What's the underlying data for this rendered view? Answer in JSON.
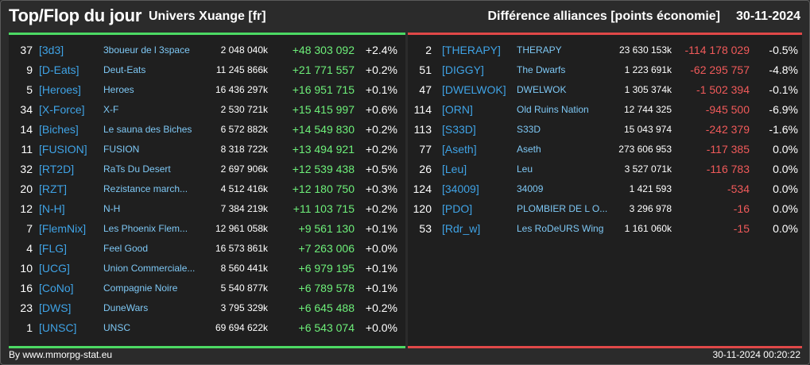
{
  "header": {
    "title": "Top/Flop du jour",
    "subtitle": "Univers Xuange [fr]",
    "right_title": "Différence alliances [points économie]",
    "date": "30-11-2024"
  },
  "colors": {
    "top_accent": "#4cd964",
    "flop_accent": "#e04848",
    "tag_color": "#3fa3e6",
    "name_color": "#7ec8f5"
  },
  "top": [
    {
      "rank": "37",
      "tag": "[3d3]",
      "name": "3boueur de l 3space",
      "points": "2 048 040k",
      "diff": "+48 303 092",
      "pct": "+2.4%"
    },
    {
      "rank": "9",
      "tag": "[D-Eats]",
      "name": "Deut-Eats",
      "points": "11 245 866k",
      "diff": "+21 771 557",
      "pct": "+0.2%"
    },
    {
      "rank": "5",
      "tag": "[Heroes]",
      "name": "Heroes",
      "points": "16 436 297k",
      "diff": "+16 951 715",
      "pct": "+0.1%"
    },
    {
      "rank": "34",
      "tag": "[X-Force]",
      "name": "X-F",
      "points": "2 530 721k",
      "diff": "+15 415 997",
      "pct": "+0.6%"
    },
    {
      "rank": "14",
      "tag": "[Biches]",
      "name": "Le sauna des Biches",
      "points": "6 572 882k",
      "diff": "+14 549 830",
      "pct": "+0.2%"
    },
    {
      "rank": "11",
      "tag": "[FUSION]",
      "name": "FUSION",
      "points": "8 318 722k",
      "diff": "+13 494 921",
      "pct": "+0.2%"
    },
    {
      "rank": "32",
      "tag": "[RT2D]",
      "name": "RaTs Du Desert",
      "points": "2 697 906k",
      "diff": "+12 539 438",
      "pct": "+0.5%"
    },
    {
      "rank": "20",
      "tag": "[RZT]",
      "name": "Rezistance march...",
      "points": "4 512 416k",
      "diff": "+12 180 750",
      "pct": "+0.3%"
    },
    {
      "rank": "12",
      "tag": "[N-H]",
      "name": "N-H",
      "points": "7 384 219k",
      "diff": "+11 103 715",
      "pct": "+0.2%"
    },
    {
      "rank": "7",
      "tag": "[FlemNix]",
      "name": "Les Phoenix Flem...",
      "points": "12 961 058k",
      "diff": "+9 561 130",
      "pct": "+0.1%"
    },
    {
      "rank": "4",
      "tag": "[FLG]",
      "name": "Feel Good",
      "points": "16 573 861k",
      "diff": "+7 263 006",
      "pct": "+0.0%"
    },
    {
      "rank": "10",
      "tag": "[UCG]",
      "name": "Union Commerciale...",
      "points": "8 560 441k",
      "diff": "+6 979 195",
      "pct": "+0.1%"
    },
    {
      "rank": "16",
      "tag": "[CoNo]",
      "name": "Compagnie Noire",
      "points": "5 540 877k",
      "diff": "+6 789 578",
      "pct": "+0.1%"
    },
    {
      "rank": "23",
      "tag": "[DWS]",
      "name": "DuneWars",
      "points": "3 795 329k",
      "diff": "+6 645 488",
      "pct": "+0.2%"
    },
    {
      "rank": "1",
      "tag": "[UNSC]",
      "name": "UNSC",
      "points": "69 694 622k",
      "diff": "+6 543 074",
      "pct": "+0.0%"
    }
  ],
  "flop": [
    {
      "rank": "2",
      "tag": "[THERAPY]",
      "name": "THERAPY",
      "points": "23 630 153k",
      "diff": "-114 178 029",
      "pct": "-0.5%"
    },
    {
      "rank": "51",
      "tag": "[DIGGY]",
      "name": "The Dwarfs",
      "points": "1 223 691k",
      "diff": "-62 295 757",
      "pct": "-4.8%"
    },
    {
      "rank": "47",
      "tag": "[DWELWOK]",
      "name": "DWELWOK",
      "points": "1 305 374k",
      "diff": "-1 502 394",
      "pct": "-0.1%"
    },
    {
      "rank": "114",
      "tag": "[ORN]",
      "name": "Old Ruins Nation",
      "points": "12 744 325",
      "diff": "-945 500",
      "pct": "-6.9%"
    },
    {
      "rank": "113",
      "tag": "[S33D]",
      "name": "S33D",
      "points": "15 043 974",
      "diff": "-242 379",
      "pct": "-1.6%"
    },
    {
      "rank": "77",
      "tag": "[Aseth]",
      "name": "Aseth",
      "points": "273 606 953",
      "diff": "-117 385",
      "pct": "0.0%"
    },
    {
      "rank": "26",
      "tag": "[Leu]",
      "name": "Leu",
      "points": "3 527 071k",
      "diff": "-116 783",
      "pct": "0.0%"
    },
    {
      "rank": "124",
      "tag": "[34009]",
      "name": "34009",
      "points": "1 421 593",
      "diff": "-534",
      "pct": "0.0%"
    },
    {
      "rank": "120",
      "tag": "[PDO]",
      "name": "PLOMBIER DE L O...",
      "points": "3 296 978",
      "diff": "-16",
      "pct": "0.0%"
    },
    {
      "rank": "53",
      "tag": "[Rdr_w]",
      "name": "Les RoDeURS Wing",
      "points": "1 161 060k",
      "diff": "-15",
      "pct": "0.0%"
    }
  ],
  "footer": {
    "credit": "By www.mmorpg-stat.eu",
    "timestamp": "30-11-2024 00:20:22"
  }
}
